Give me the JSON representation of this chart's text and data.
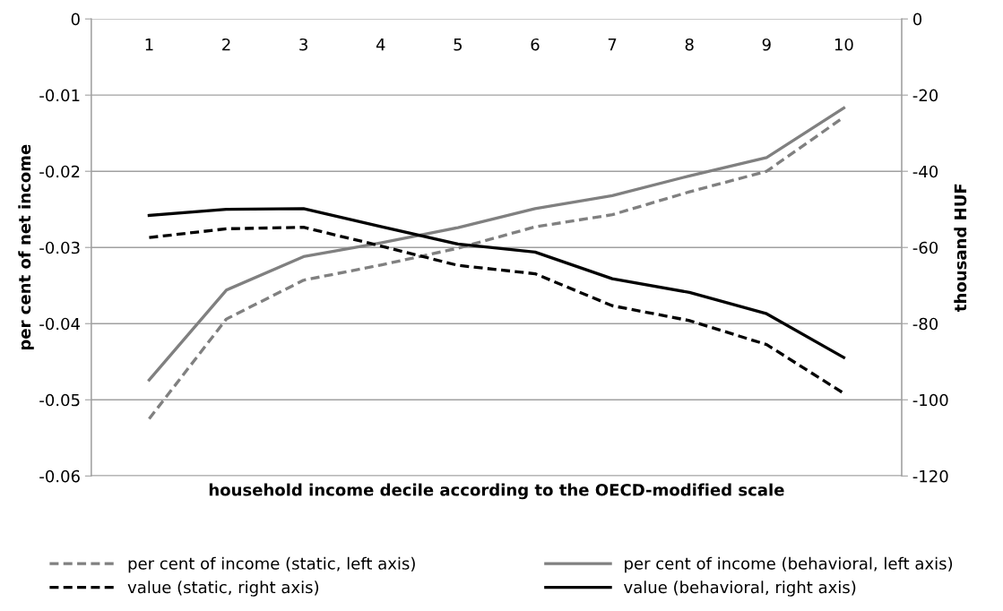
{
  "chart_data": {
    "type": "line",
    "xlabel": "household income decile according to the OECD-modified scale",
    "ylabel": "per cent of net income",
    "y2label": "thousand HUF",
    "categories": [
      "1",
      "2",
      "3",
      "4",
      "5",
      "6",
      "7",
      "8",
      "9",
      "10"
    ],
    "series": [
      {
        "name": "per cent of income (static, left axis)",
        "color": "#808080",
        "line_style": "dashed",
        "values": [
          -0.0525,
          -0.0394,
          -0.0343,
          -0.0323,
          -0.0301,
          -0.0273,
          -0.0257,
          -0.0227,
          -0.02,
          -0.0129
        ]
      },
      {
        "name": "per cent of income (behavioral, left axis)",
        "color": "#808080",
        "line_style": "solid",
        "values": [
          -0.0474,
          -0.0356,
          -0.0312,
          -0.0294,
          -0.0274,
          -0.0249,
          -0.0232,
          -0.0206,
          -0.0182,
          -0.0117
        ]
      },
      {
        "name": "value (static, right axis)",
        "color": "#000000",
        "line_style": "dashed",
        "axis": "y2",
        "values": [
          -57.4,
          -55.1,
          -54.7,
          -59.6,
          -64.7,
          -66.9,
          -75.3,
          -79.2,
          -85.5,
          -98.3
        ]
      },
      {
        "name": "value (behavioral, right axis)",
        "color": "#000000",
        "line_style": "solid",
        "axis": "y2",
        "values": [
          -51.6,
          -50.0,
          -49.8,
          -54.5,
          -59.1,
          -61.2,
          -68.2,
          -71.8,
          -77.4,
          -88.9
        ]
      }
    ],
    "ylim": [
      -0.06,
      0
    ],
    "yticks": [
      0,
      -0.01,
      -0.02,
      -0.03,
      -0.04,
      -0.05,
      -0.06
    ],
    "y2lim": [
      -120,
      0
    ],
    "y2ticks": [
      0,
      -20,
      -40,
      -60,
      -80,
      -100,
      -120
    ],
    "grid": "y",
    "legend": "bottom",
    "marker": "none"
  }
}
